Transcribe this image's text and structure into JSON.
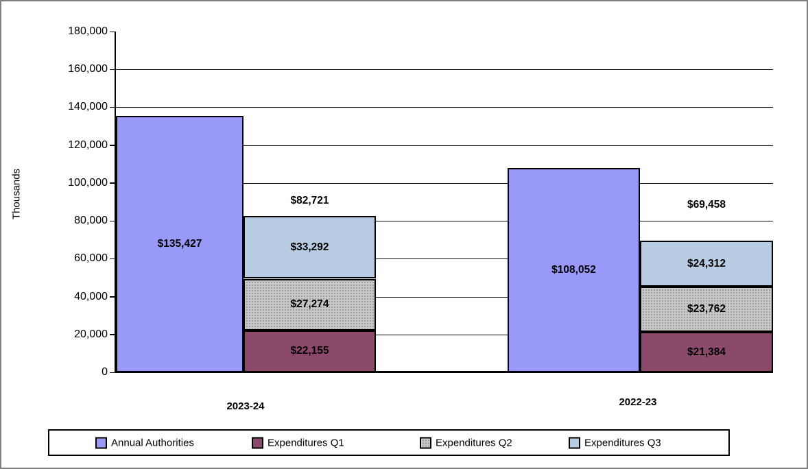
{
  "chart_data": {
    "type": "bar",
    "title": "",
    "xlabel": "",
    "ylabel": "Thousands",
    "ylim": [
      0,
      180000
    ],
    "ytick_step": 20000,
    "y_tick_labels": [
      "0",
      "20,000",
      "40,000",
      "60,000",
      "80,000",
      "100,000",
      "120,000",
      "140,000",
      "160,000",
      "180,000"
    ],
    "grid": true,
    "legend_position": "bottom",
    "categories": [
      "2023-24",
      "2022-23"
    ],
    "series": [
      {
        "name": "Annual Authorities",
        "role": "column",
        "color": "#9999fa",
        "pattern": "solid",
        "values": [
          135427,
          108052
        ],
        "data_labels": [
          "$135,427",
          "$108,052"
        ]
      },
      {
        "name": "Expenditures Q1",
        "role": "stack",
        "color": "#8b4a69",
        "pattern": "solid",
        "values": [
          22155,
          21384
        ],
        "data_labels": [
          "$22,155",
          "$21,384"
        ]
      },
      {
        "name": "Expenditures Q2",
        "role": "stack",
        "color": "#c9c9c9",
        "pattern": "dots",
        "values": [
          27274,
          23762
        ],
        "data_labels": [
          "$27,274",
          "$23,762"
        ]
      },
      {
        "name": "Expenditures Q3",
        "role": "stack",
        "color": "#b8cce4",
        "pattern": "solid",
        "values": [
          33292,
          24312
        ],
        "data_labels": [
          "$33,292",
          "$24,312"
        ]
      }
    ],
    "stack_totals": {
      "values": [
        82721,
        69458
      ],
      "labels": [
        "$82,721",
        "$69,458"
      ]
    },
    "colors": {
      "axis": "#000000",
      "gridline": "#000000",
      "text": "#000000",
      "frame_border": "#7f7f7f"
    }
  }
}
